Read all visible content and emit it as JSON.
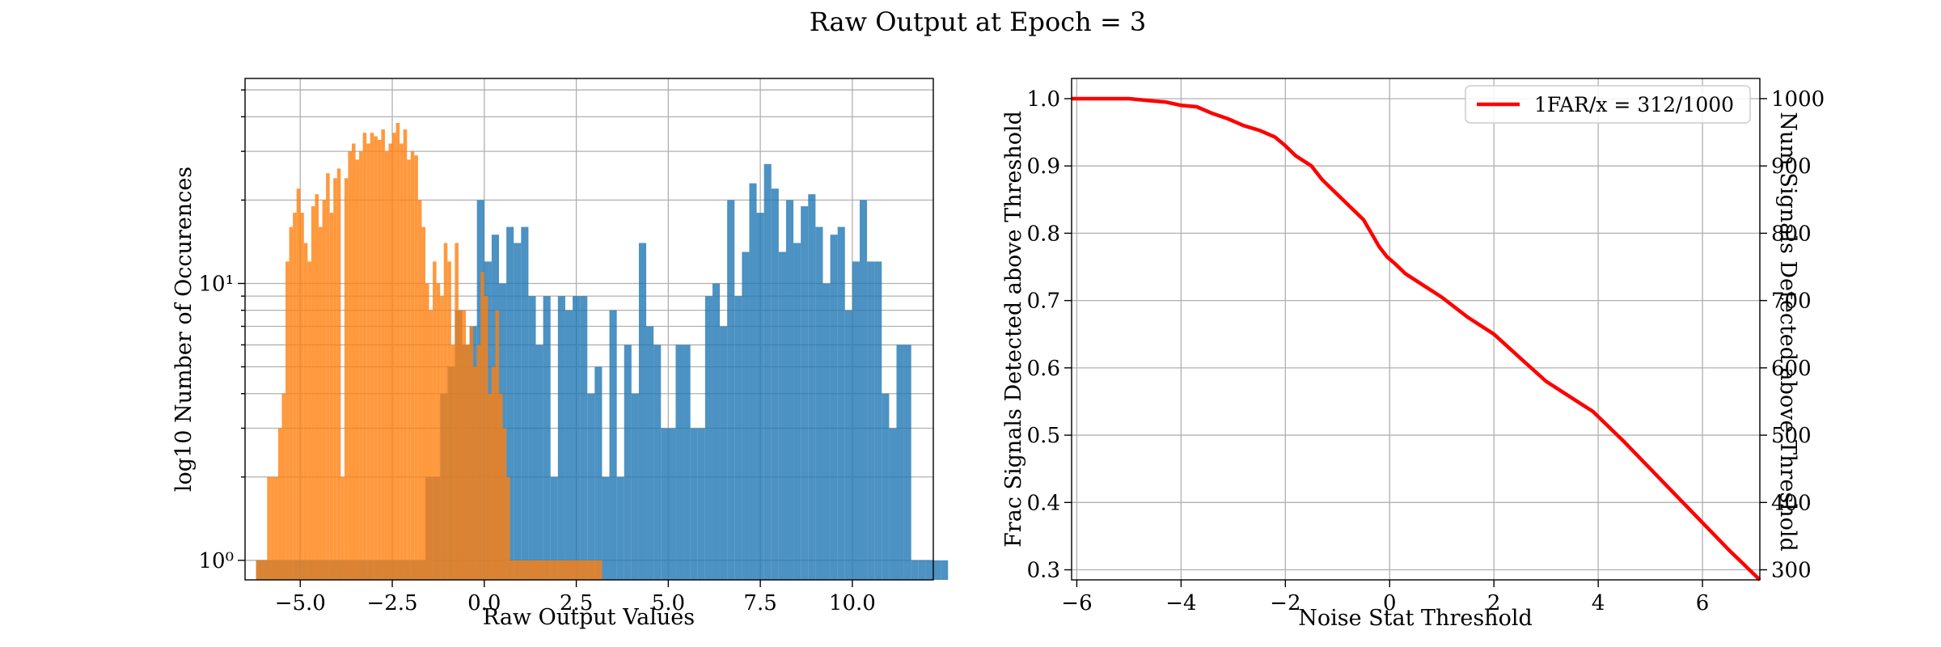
{
  "figure": {
    "title": "Raw Output at Epoch = 3"
  },
  "chart_data": [
    {
      "type": "bar",
      "subtype": "histogram",
      "xlabel": "Raw Output Values",
      "ylabel": "log10 Number of Occurences",
      "xlim": [
        -6.5,
        12.2
      ],
      "ylim": [
        0.85,
        55
      ],
      "yscale": "log",
      "grid": true,
      "xticks": [
        -5.0,
        -2.5,
        0.0,
        2.5,
        5.0,
        7.5,
        10.0
      ],
      "xtick_labels": [
        "−5.0",
        "−2.5",
        "0.0",
        "2.5",
        "5.0",
        "7.5",
        "10.0"
      ],
      "yticks": [
        1,
        10
      ],
      "ytick_labels": [
        "10⁰",
        "10¹"
      ],
      "colors": {
        "signal": "#1f77b4",
        "noise": "#ff7f0e",
        "bar_alpha": 0.8
      },
      "series": [
        {
          "name": "signal",
          "bin_start": -6.2,
          "bin_width": 0.2,
          "counts": [
            1,
            1,
            1,
            1,
            1,
            1,
            1,
            1,
            1,
            1,
            1,
            1,
            1,
            1,
            1,
            1,
            1,
            1,
            1,
            1,
            1,
            1,
            1,
            2,
            2,
            4,
            5,
            8,
            6,
            7,
            20,
            12,
            15,
            10,
            16,
            14,
            16,
            9,
            6,
            9,
            2,
            9,
            8,
            9,
            9,
            4,
            5,
            2,
            8,
            2,
            6,
            4,
            14,
            7,
            6,
            3,
            3,
            6,
            6,
            3,
            3,
            9,
            10,
            7,
            20,
            9,
            13,
            23,
            18,
            27,
            22,
            13,
            20,
            14,
            19,
            21,
            16,
            10,
            15,
            16,
            8,
            12,
            20,
            12,
            12,
            4,
            3,
            6,
            6,
            1,
            1,
            1,
            1,
            1
          ]
        },
        {
          "name": "noise",
          "bin_start": -6.2,
          "bin_width": 0.1,
          "counts": [
            1,
            1,
            1,
            2,
            2,
            2,
            3,
            4,
            12,
            16,
            18,
            22,
            18,
            14,
            12,
            19,
            21,
            16,
            20,
            25,
            18,
            24,
            26,
            2,
            24,
            30,
            32,
            28,
            30,
            35,
            32,
            35,
            34,
            33,
            36,
            30,
            32,
            35,
            38,
            32,
            36,
            28,
            30,
            29,
            20,
            16,
            10,
            8,
            12,
            10,
            9,
            14,
            12,
            6,
            14,
            8,
            8,
            6,
            7,
            5,
            6,
            11,
            9,
            4,
            5,
            8,
            4,
            3,
            2,
            1,
            1,
            1,
            1,
            1,
            1,
            1,
            1,
            1,
            1,
            1,
            1,
            1,
            1,
            1,
            1,
            1,
            1,
            1,
            1,
            1,
            1,
            1,
            1,
            1
          ]
        }
      ]
    },
    {
      "type": "line",
      "xlabel": "Noise Stat Threshold",
      "ylabel": "Frac Signals Detected above Threshold",
      "ylabel_right": "Num Signals Detected above Threshold",
      "xlim": [
        -6.1,
        7.1
      ],
      "ylim": [
        0.285,
        1.03
      ],
      "ylim_right": [
        285,
        1030
      ],
      "grid": true,
      "legend_position": "top-right",
      "xticks": [
        -6,
        -4,
        -2,
        0,
        2,
        4,
        6
      ],
      "xtick_labels": [
        "−6",
        "−4",
        "−2",
        "0",
        "2",
        "4",
        "6"
      ],
      "yticks": [
        0.3,
        0.4,
        0.5,
        0.6,
        0.7,
        0.8,
        0.9,
        1.0
      ],
      "ytick_labels": [
        "0.3",
        "0.4",
        "0.5",
        "0.6",
        "0.7",
        "0.8",
        "0.9",
        "1.0"
      ],
      "yticks_right": [
        300,
        400,
        500,
        600,
        700,
        800,
        900,
        1000
      ],
      "ytick_labels_right": [
        "300",
        "400",
        "500",
        "600",
        "700",
        "800",
        "900",
        "1000"
      ],
      "color": "#ff0000",
      "series": [
        {
          "name": "1FAR/x = 312/1000",
          "x": [
            -6.1,
            -5.0,
            -4.6,
            -4.3,
            -4.0,
            -3.7,
            -3.4,
            -3.1,
            -2.8,
            -2.5,
            -2.2,
            -2.0,
            -1.8,
            -1.5,
            -1.3,
            -1.1,
            -0.9,
            -0.7,
            -0.5,
            -0.35,
            -0.2,
            -0.05,
            0.1,
            0.3,
            0.6,
            1.0,
            1.5,
            2.0,
            2.5,
            3.0,
            3.5,
            3.9,
            4.5,
            5.0,
            5.5,
            6.0,
            6.5,
            7.1
          ],
          "y": [
            1.0,
            1.0,
            0.997,
            0.995,
            0.99,
            0.988,
            0.978,
            0.97,
            0.96,
            0.953,
            0.943,
            0.93,
            0.915,
            0.9,
            0.88,
            0.865,
            0.85,
            0.835,
            0.82,
            0.8,
            0.78,
            0.765,
            0.755,
            0.74,
            0.725,
            0.705,
            0.675,
            0.65,
            0.615,
            0.58,
            0.555,
            0.535,
            0.49,
            0.45,
            0.41,
            0.37,
            0.33,
            0.285
          ]
        }
      ]
    }
  ]
}
